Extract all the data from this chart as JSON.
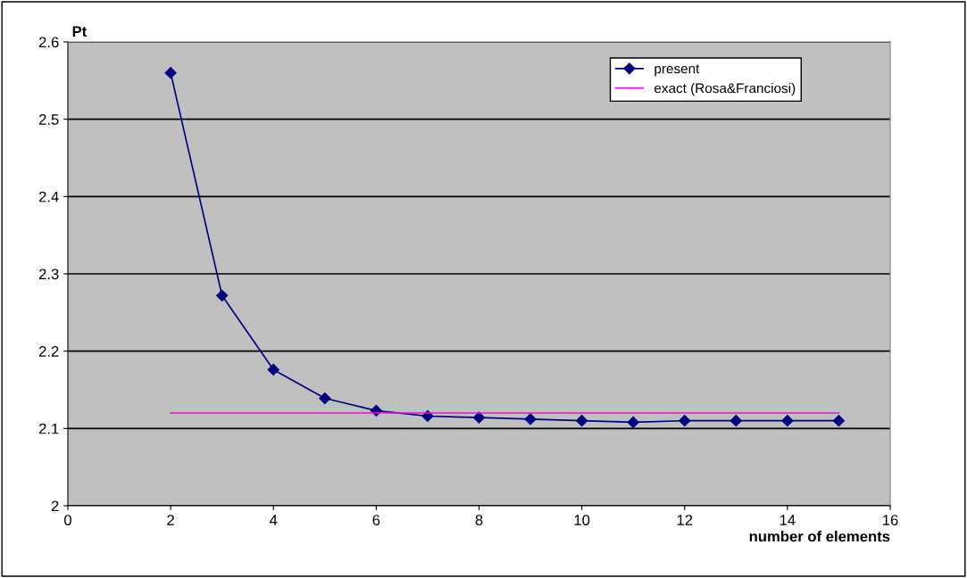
{
  "chart_data": {
    "type": "line",
    "xlabel": "number of elements",
    "ylabel": "Pt",
    "series": [
      {
        "name": "present",
        "color": "#000080",
        "marker": "diamond",
        "x": [
          2,
          3,
          4,
          5,
          6,
          7,
          8,
          9,
          10,
          11,
          12,
          13,
          14,
          15
        ],
        "values": [
          2.56,
          2.272,
          2.176,
          2.139,
          2.123,
          2.116,
          2.114,
          2.112,
          2.11,
          2.108,
          2.11,
          2.11,
          2.11,
          2.11
        ]
      },
      {
        "name": "exact (Rosa&Franciosi)",
        "color": "#ff00ff",
        "marker": "none",
        "x": [
          2,
          15
        ],
        "values": [
          2.12,
          2.12
        ]
      }
    ],
    "xlim": [
      0,
      16
    ],
    "xticks": [
      0,
      2,
      4,
      6,
      8,
      10,
      12,
      14,
      16
    ],
    "ylim": [
      2,
      2.6
    ],
    "yticks": [
      2,
      2.1,
      2.2,
      2.3,
      2.4,
      2.5,
      2.6
    ],
    "grid": "y",
    "legend": "top right"
  }
}
